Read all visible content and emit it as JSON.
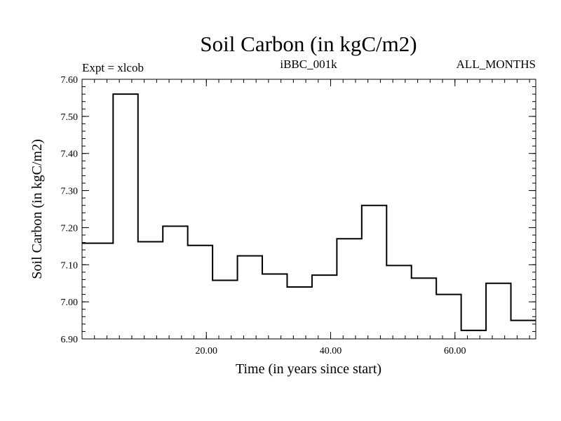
{
  "chart_data": {
    "type": "line",
    "title": "Soil Carbon (in kgC/m2)",
    "left_note": "Expt = xlcob",
    "center_note": "iBBC_001k",
    "right_note": "ALL_MONTHS",
    "xlabel": "Time (in years since start)",
    "ylabel": "Soil Carbon (in kgC/m2)",
    "xlim": [
      0,
      73
    ],
    "ylim": [
      6.9,
      7.6
    ],
    "x_ticks": [
      20,
      40,
      60
    ],
    "x_tick_labels": [
      "20.00",
      "40.00",
      "60.00"
    ],
    "y_ticks": [
      6.9,
      7.0,
      7.1,
      7.2,
      7.3,
      7.4,
      7.5,
      7.6
    ],
    "y_tick_labels": [
      "6.90",
      "7.00",
      "7.10",
      "7.20",
      "7.30",
      "7.40",
      "7.50",
      "7.60"
    ],
    "grid": false,
    "step_interval_years": 4,
    "series": [
      {
        "x": [
          0,
          5,
          9,
          13,
          17,
          21,
          25,
          29,
          33,
          37,
          41,
          45,
          49,
          53,
          57,
          61,
          65,
          69
        ],
        "values": [
          7.158,
          7.56,
          7.162,
          7.204,
          7.152,
          7.058,
          7.124,
          7.075,
          7.04,
          7.072,
          7.17,
          7.26,
          7.098,
          7.064,
          7.02,
          6.923,
          7.05,
          6.95
        ]
      }
    ]
  }
}
